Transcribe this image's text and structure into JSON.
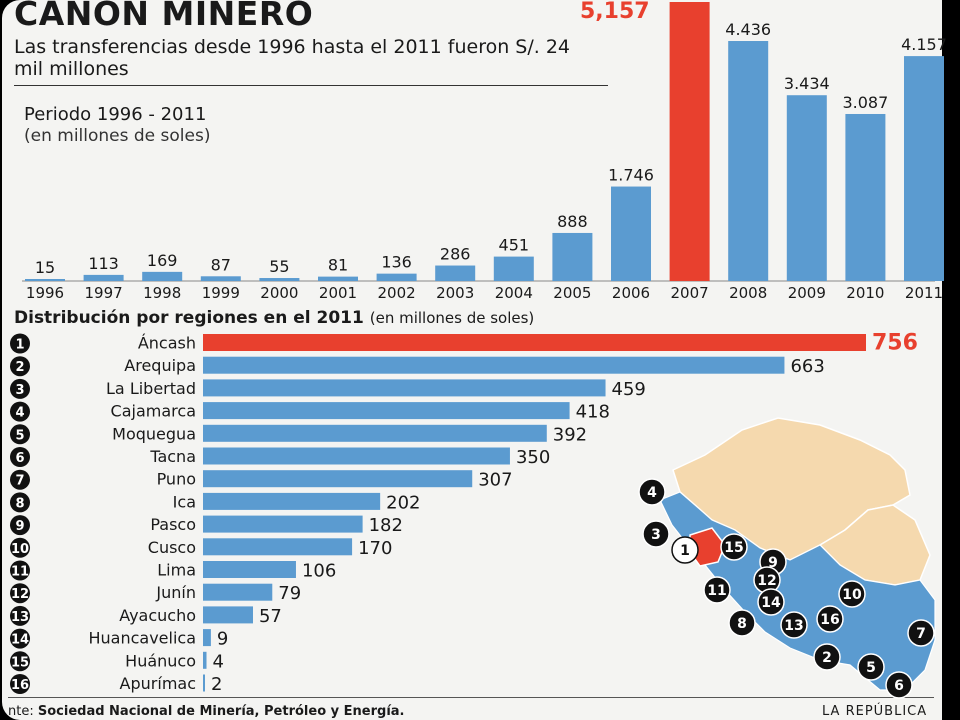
{
  "header": {
    "title": "CANON MINERO",
    "subtitle": "Las transferencias desde 1996 hasta el 2011 fueron S/. 24 mil millones"
  },
  "colors": {
    "bar": "#5b9bd0",
    "highlight": "#e8402e",
    "map_land": "#f5d9ae",
    "map_region": "#5b9bd0",
    "map_highlight": "#e8402e"
  },
  "chart_data": [
    {
      "type": "bar",
      "title": "Periodo 1996 - 2011",
      "subtitle": "(en millones de soles)",
      "categories": [
        "1996",
        "1997",
        "1998",
        "1999",
        "2000",
        "2001",
        "2002",
        "2003",
        "2004",
        "2005",
        "2006",
        "2007",
        "2008",
        "2009",
        "2010",
        "2011"
      ],
      "values": [
        15,
        113,
        169,
        87,
        55,
        81,
        136,
        286,
        451,
        888,
        1746,
        5157,
        4436,
        3434,
        3087,
        4157
      ],
      "value_labels": [
        "15",
        "113",
        "169",
        "87",
        "55",
        "81",
        "136",
        "286",
        "451",
        "888",
        "1.746",
        "5,157",
        "4.436",
        "3.434",
        "3.087",
        "4.157"
      ],
      "highlight_index": 11,
      "ylim": [
        0,
        5157
      ]
    },
    {
      "type": "bar",
      "orientation": "horizontal",
      "title": "Distribución por regiones en el 2011",
      "subtitle": "(en millones de soles)",
      "categories": [
        "Áncash",
        "Arequipa",
        "La Libertad",
        "Cajamarca",
        "Moquegua",
        "Tacna",
        "Puno",
        "Ica",
        "Pasco",
        "Cusco",
        "Lima",
        "Junín",
        "Ayacucho",
        "Huancavelica",
        "Huánuco",
        "Apurímac"
      ],
      "ranks": [
        "1",
        "2",
        "3",
        "4",
        "5",
        "6",
        "7",
        "8",
        "9",
        "10",
        "11",
        "12",
        "13",
        "14",
        "15",
        "16"
      ],
      "values": [
        756,
        663,
        459,
        418,
        392,
        350,
        307,
        202,
        182,
        170,
        106,
        79,
        57,
        9,
        4,
        2
      ],
      "highlight_index": 0,
      "xlim": [
        0,
        756
      ]
    }
  ],
  "map": {
    "markers": [
      "4",
      "3",
      "1",
      "15",
      "9",
      "12",
      "11",
      "14",
      "10",
      "8",
      "13",
      "16",
      "7",
      "2",
      "5",
      "6"
    ]
  },
  "footer": {
    "source_label": "nte:",
    "source_text": "Sociedad Nacional de Minería, Petróleo y Energía.",
    "brand": "LA REPÚBLICA"
  }
}
